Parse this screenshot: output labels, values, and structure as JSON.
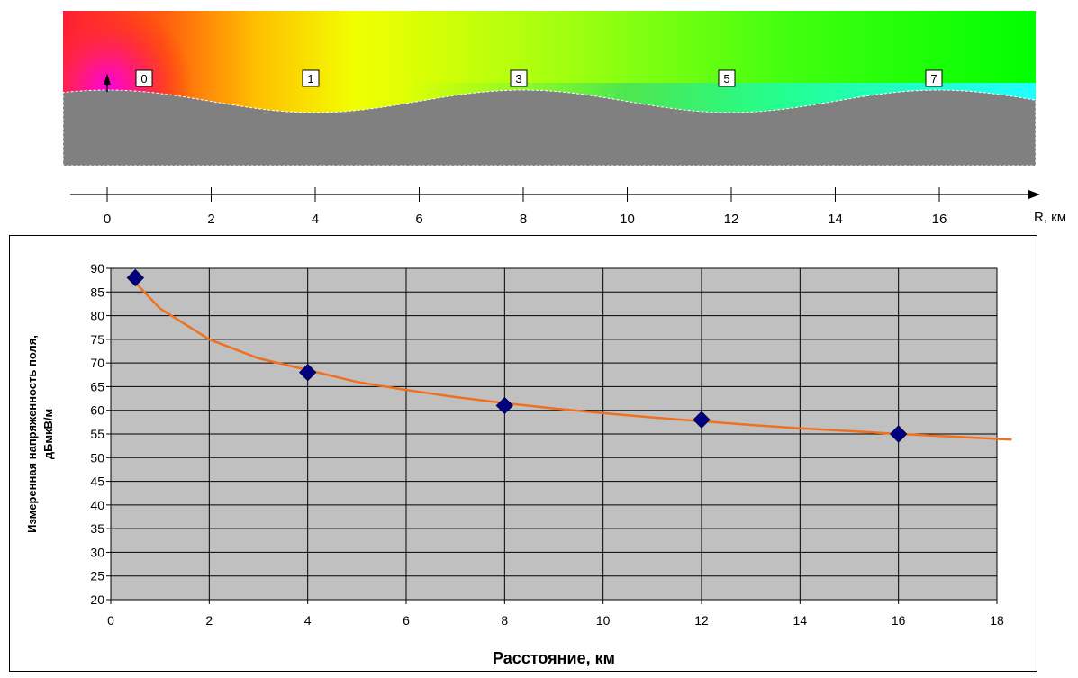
{
  "terrain": {
    "markers": [
      "0",
      "1",
      "3",
      "5",
      "7"
    ]
  },
  "distance_axis": {
    "ticks": [
      "0",
      "2",
      "4",
      "6",
      "8",
      "10",
      "12",
      "14",
      "16"
    ],
    "label": "R, км"
  },
  "chart_data": {
    "type": "scatter",
    "xlabel": "Расстояние, км",
    "ylabel_line1": "Измеренная напряженность поля,",
    "ylabel_line2": "дБмкВ/м",
    "xlim": [
      0,
      18
    ],
    "ylim": [
      20,
      90
    ],
    "x_ticks": [
      0,
      2,
      4,
      6,
      8,
      10,
      12,
      14,
      16,
      18
    ],
    "y_ticks": [
      20,
      25,
      30,
      35,
      40,
      45,
      50,
      55,
      60,
      65,
      70,
      75,
      80,
      85,
      90
    ],
    "grid": true,
    "series": [
      {
        "kind": "markers",
        "marker": "diamond",
        "color": "#000080",
        "x": [
          0.5,
          4,
          8,
          12,
          16
        ],
        "y": [
          88,
          68,
          61,
          58,
          55
        ]
      },
      {
        "kind": "line",
        "color": "#f07020",
        "x": [
          0.5,
          1,
          2,
          3,
          4,
          5,
          6,
          7,
          8,
          9,
          10,
          11,
          12,
          13,
          14,
          15,
          16,
          17,
          18.3
        ],
        "y": [
          87,
          81.5,
          75,
          71,
          68.5,
          66,
          64.3,
          62.8,
          61.5,
          60.4,
          59.4,
          58.5,
          57.7,
          56.9,
          56.2,
          55.6,
          55,
          54.5,
          53.8
        ]
      }
    ],
    "colors": {
      "plot_bg": "#c0c0c0",
      "grid": "#000000",
      "terrain": "#808080"
    }
  }
}
